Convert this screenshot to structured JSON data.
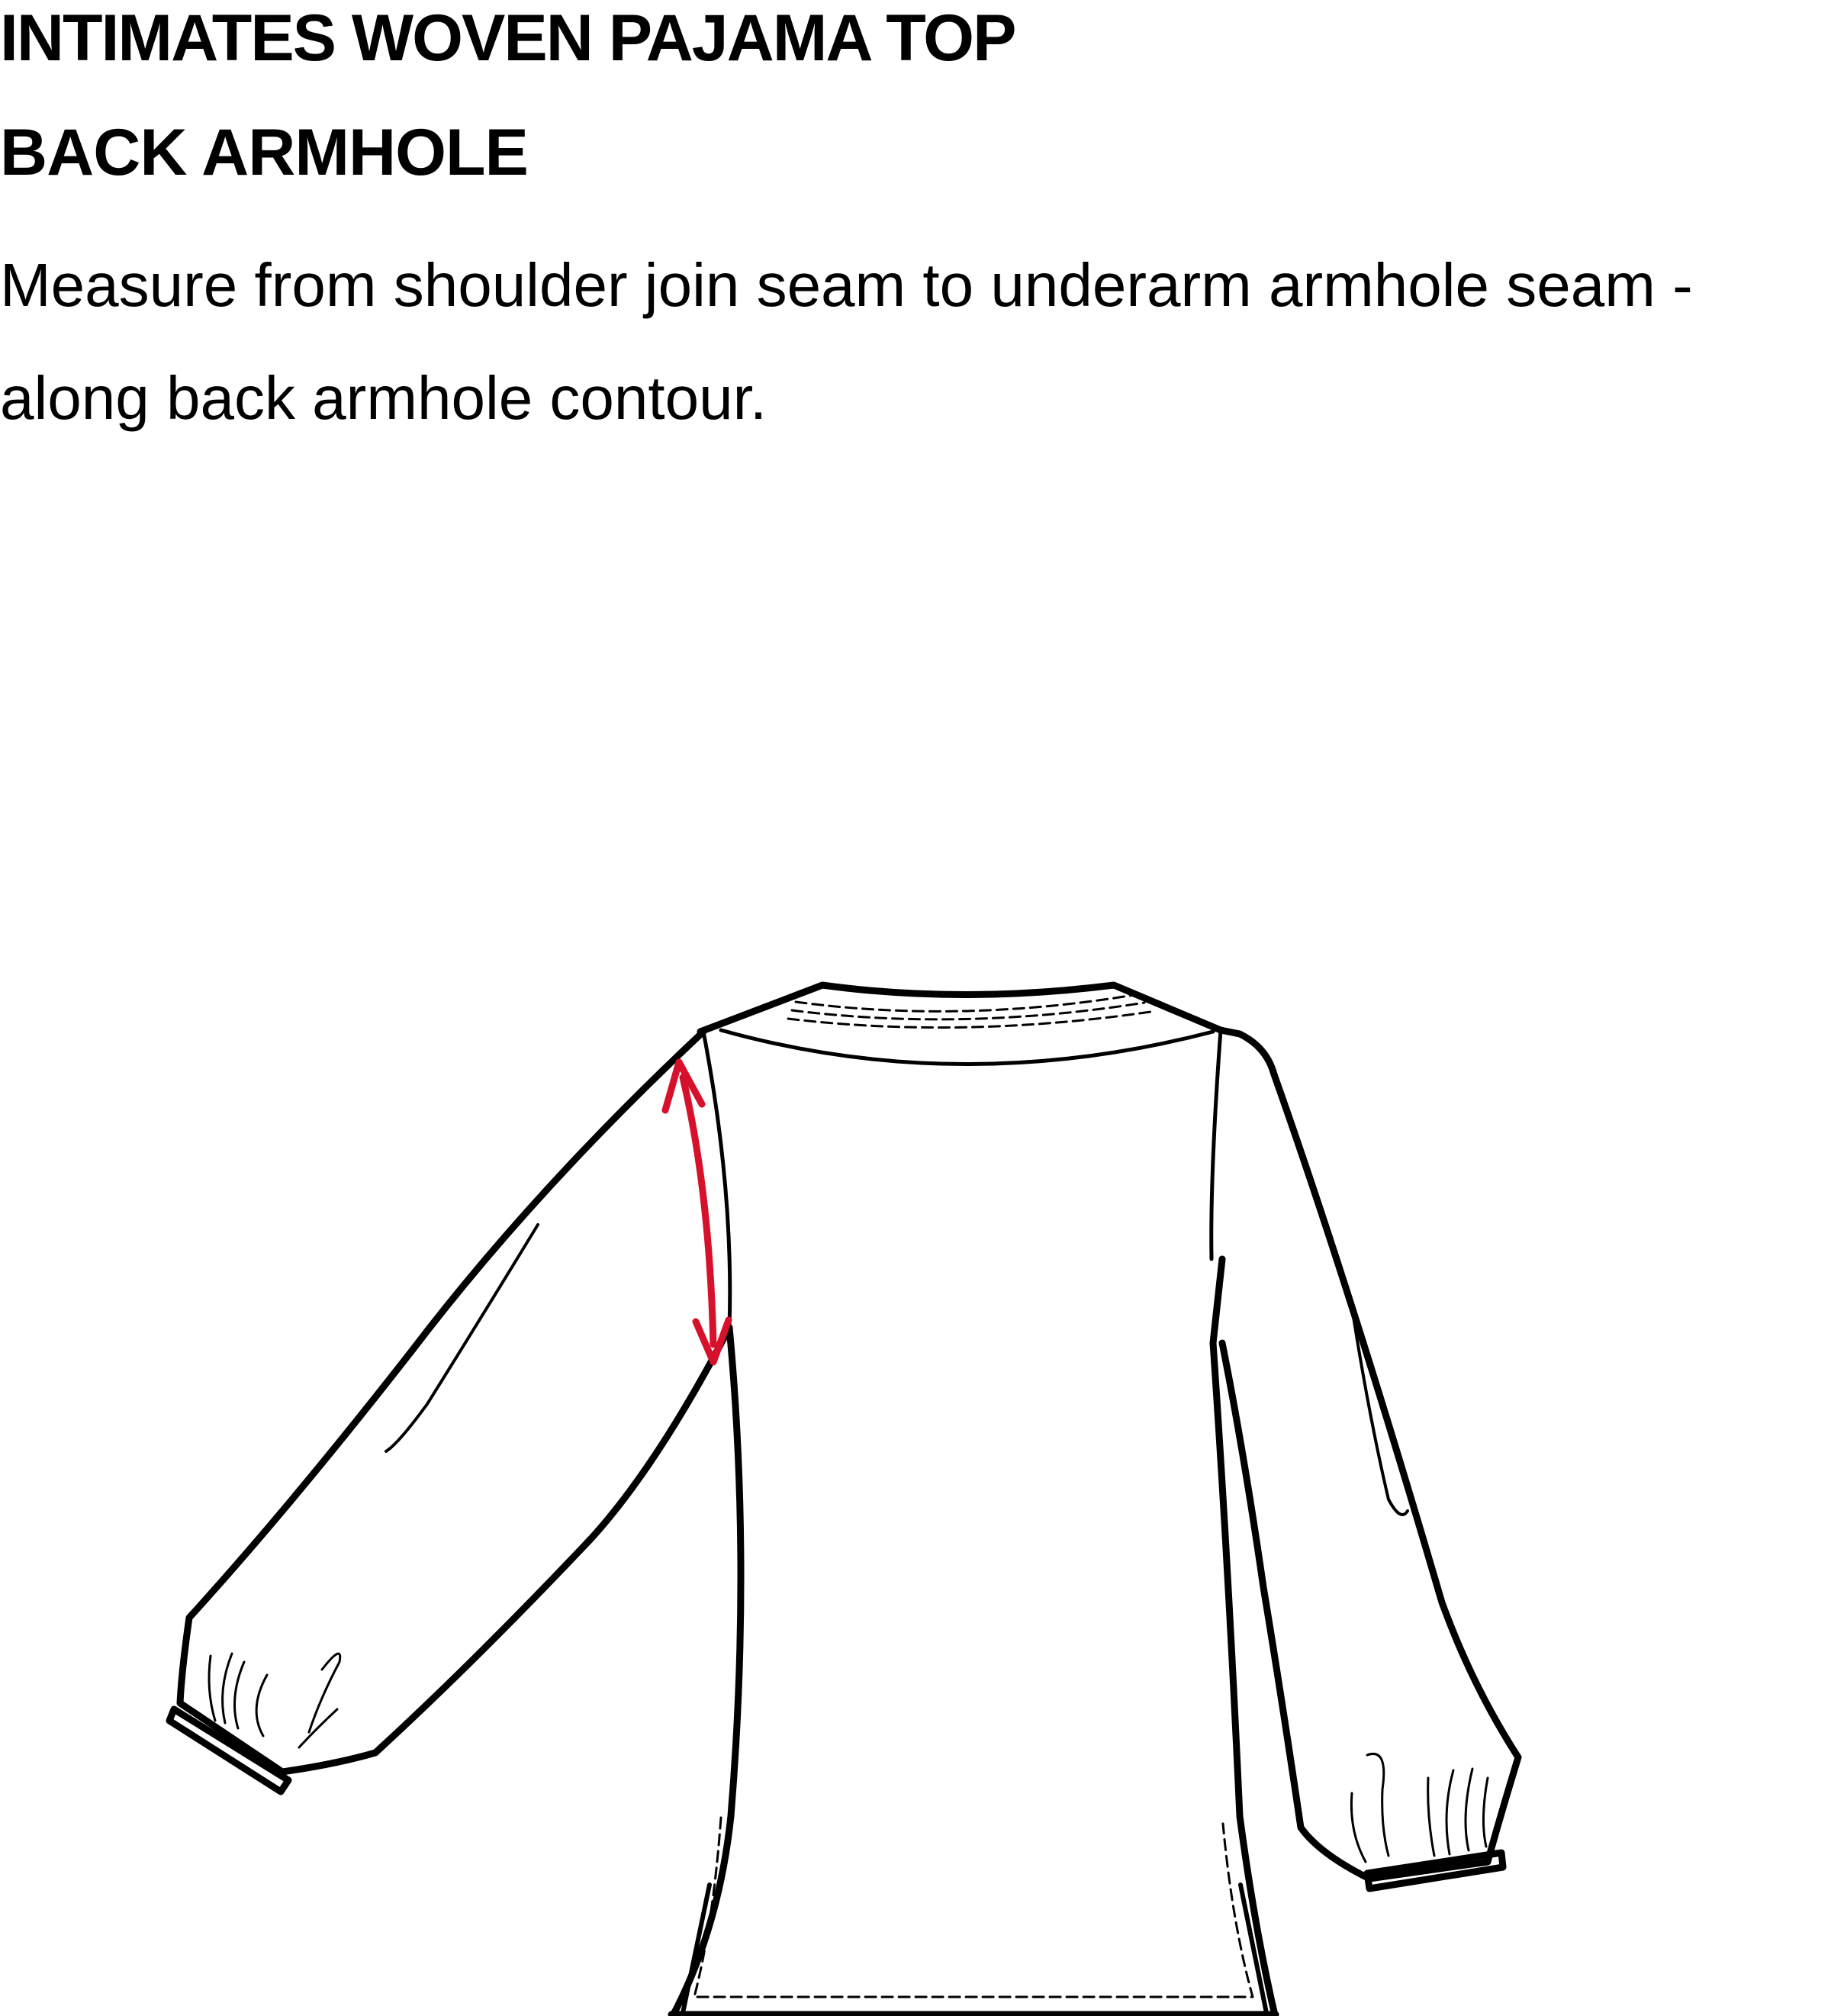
{
  "header": {
    "title": "INTIMATES WOVEN PAJAMA TOP",
    "subtitle": "BACK ARMHOLE"
  },
  "instruction": {
    "text": "Measure from shoulder join seam to underarm armhole seam - along back armhole contour."
  },
  "illustration": {
    "garment": "pajama-top-back-view",
    "measurement": "back-armhole",
    "line_color": "#000000",
    "measure_arrow_color": "#d7102b"
  }
}
